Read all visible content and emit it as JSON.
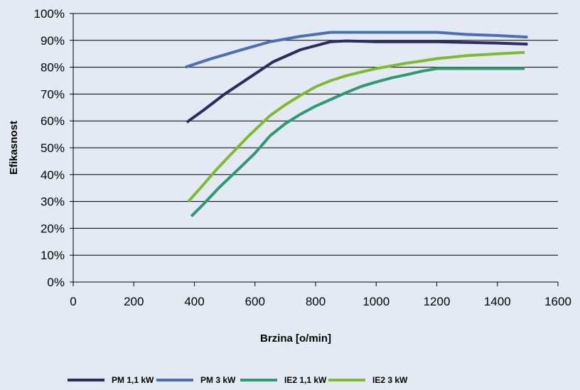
{
  "chart_data": {
    "type": "line",
    "title": "",
    "xlabel": "Brzina [o/min]",
    "ylabel": "Efikasnost",
    "xlim": [
      0,
      1600
    ],
    "ylim": [
      0,
      1
    ],
    "xticks": [
      0,
      200,
      400,
      600,
      800,
      1000,
      1200,
      1400,
      1600
    ],
    "xtick_labels": [
      "0",
      "200",
      "400",
      "600",
      "800",
      "1000",
      "1200",
      "1400",
      "1600"
    ],
    "yticks": [
      0,
      0.1,
      0.2,
      0.3,
      0.4,
      0.5,
      0.6,
      0.7,
      0.8,
      0.9,
      1.0
    ],
    "ytick_labels": [
      "0%",
      "10%",
      "20%",
      "30%",
      "40%",
      "50%",
      "60%",
      "70%",
      "80%",
      "90%",
      "100%"
    ],
    "grid": "horizontal",
    "legend_position": "bottom",
    "series": [
      {
        "name": "PM 1,1 kW",
        "color": "#2e2a62",
        "x": [
          375,
          430,
          500,
          580,
          660,
          750,
          850,
          900,
          1000,
          1100,
          1200,
          1300,
          1400,
          1500
        ],
        "y": [
          0.595,
          0.64,
          0.7,
          0.76,
          0.82,
          0.865,
          0.895,
          0.898,
          0.895,
          0.895,
          0.895,
          0.892,
          0.89,
          0.886
        ]
      },
      {
        "name": "PM 3 kW",
        "color": "#4a6fb5",
        "x": [
          370,
          450,
          550,
          650,
          750,
          850,
          1000,
          1100,
          1200,
          1300,
          1400,
          1500
        ],
        "y": [
          0.8,
          0.83,
          0.863,
          0.895,
          0.915,
          0.93,
          0.93,
          0.93,
          0.93,
          0.922,
          0.918,
          0.912
        ]
      },
      {
        "name": "IE2 1,1 kW",
        "color": "#2e9a72",
        "x": [
          390,
          430,
          480,
          550,
          600,
          650,
          700,
          750,
          800,
          850,
          900,
          950,
          1000,
          1050,
          1100,
          1150,
          1200,
          1300,
          1400,
          1490
        ],
        "y": [
          0.245,
          0.29,
          0.35,
          0.425,
          0.48,
          0.545,
          0.59,
          0.625,
          0.655,
          0.68,
          0.705,
          0.728,
          0.745,
          0.76,
          0.772,
          0.785,
          0.795,
          0.795,
          0.795,
          0.795
        ]
      },
      {
        "name": "IE2 3 kW",
        "color": "#7dbb2f",
        "x": [
          380,
          420,
          470,
          520,
          580,
          650,
          700,
          750,
          800,
          850,
          900,
          950,
          1000,
          1050,
          1100,
          1150,
          1200,
          1300,
          1400,
          1490
        ],
        "y": [
          0.3,
          0.35,
          0.415,
          0.475,
          0.545,
          0.62,
          0.66,
          0.695,
          0.727,
          0.75,
          0.768,
          0.782,
          0.795,
          0.805,
          0.815,
          0.823,
          0.832,
          0.843,
          0.85,
          0.855
        ]
      }
    ]
  }
}
